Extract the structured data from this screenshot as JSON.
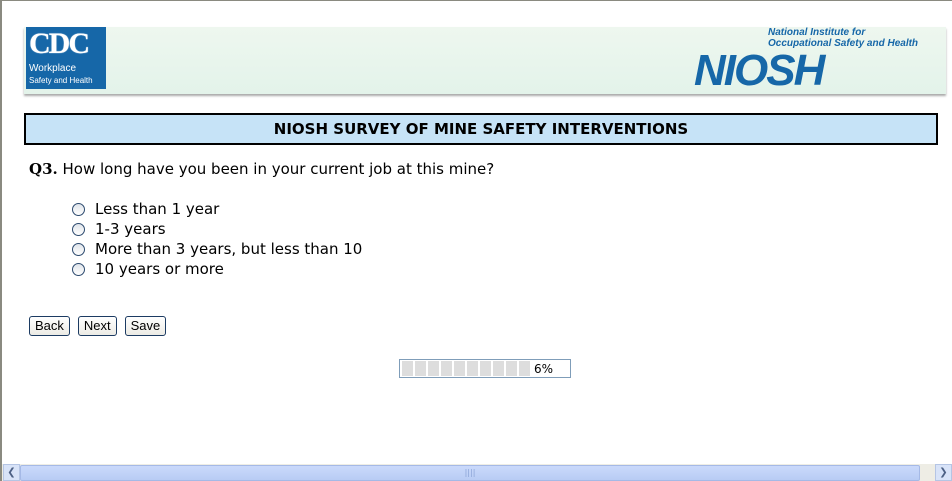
{
  "header": {
    "cdc_logo": {
      "text": "CDC",
      "line1": "Workplace",
      "line2": "Safety and Health"
    },
    "niosh_logo": {
      "text": "NIOSH",
      "line1": "National Institute for",
      "line2": "Occupational Safety and Health"
    }
  },
  "survey_title": "NIOSH SURVEY OF MINE SAFETY INTERVENTIONS",
  "question": {
    "number": "Q3.",
    "text": "How long have you been in your current job at this mine?",
    "options": [
      {
        "label": "Less than 1 year",
        "selected": false
      },
      {
        "label": "1-3 years",
        "selected": false
      },
      {
        "label": "More than 3 years, but less than 10",
        "selected": false
      },
      {
        "label": "10 years or more",
        "selected": false
      }
    ]
  },
  "buttons": {
    "back": "Back",
    "next": "Next",
    "save": "Save"
  },
  "progress": {
    "percent": 6,
    "label": "6%",
    "segments": 10
  },
  "colors": {
    "title_bg": "#c6e3f7",
    "brand_blue": "#1667a8"
  }
}
